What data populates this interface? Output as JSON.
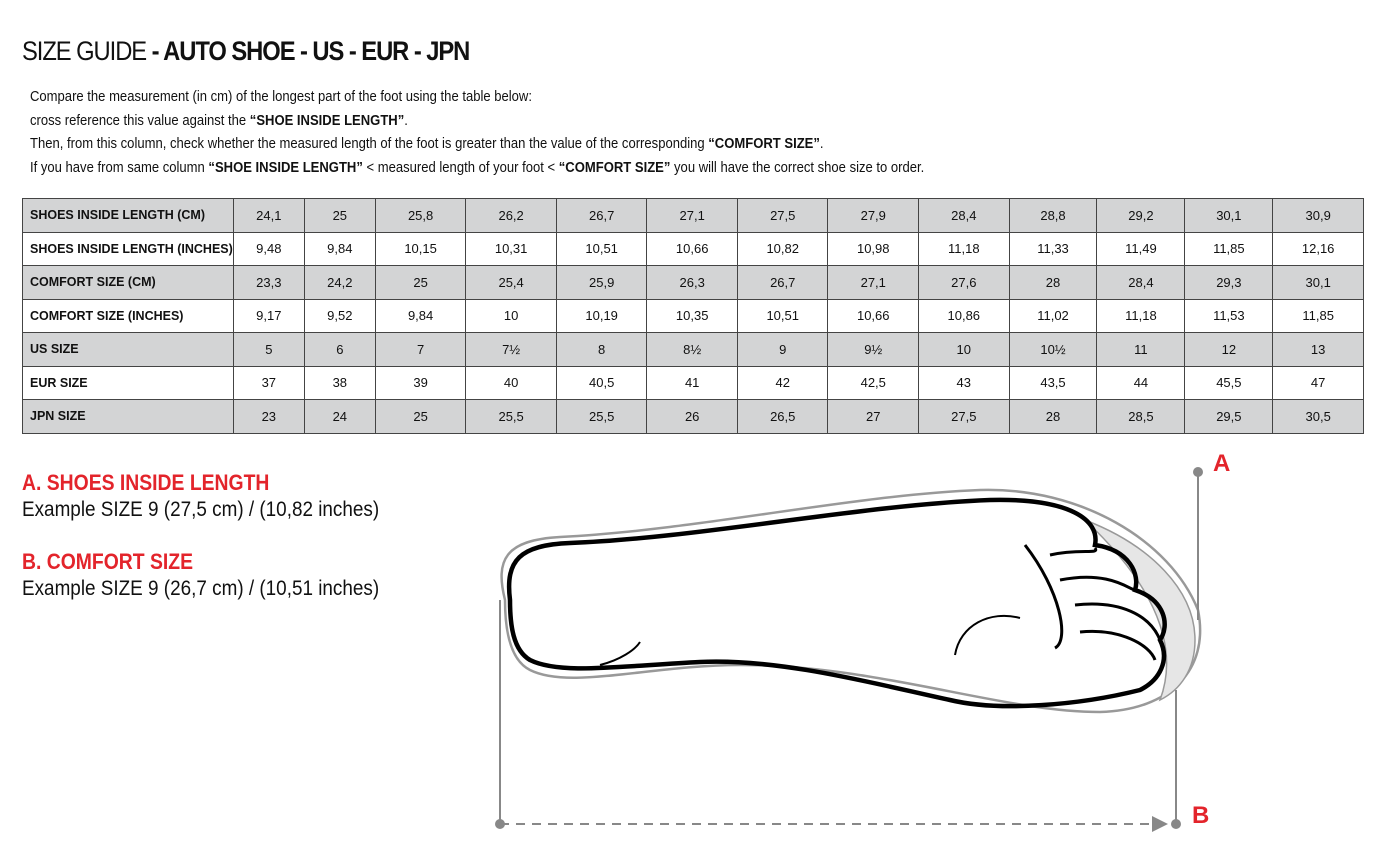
{
  "title": {
    "light": "SIZE GUIDE",
    "bold": " - AUTO SHOE - US - EUR - JPN"
  },
  "intro": {
    "line1": "Compare the measurement (in cm) of the longest part of the foot using the table below:",
    "line2_a": "cross reference this value against the ",
    "line2_b": "“SHOE INSIDE LENGTH”",
    "line2_c": ".",
    "line3_a": "Then, from this column, check whether the measured length of the foot is greater than the value of the corresponding ",
    "line3_b": "“COMFORT SIZE”",
    "line3_c": ".",
    "line4_a": "If you have from same column ",
    "line4_b": "“SHOE INSIDE LENGTH”",
    "line4_c": " <  measured length of your foot  < ",
    "line4_d": "“COMFORT SIZE”",
    "line4_e": " you will have the correct shoe size to order."
  },
  "table": {
    "rows": [
      {
        "label": "SHOES INSIDE LENGTH (CM)",
        "values": [
          "24,1",
          "25",
          "25,8",
          "26,2",
          "26,7",
          "27,1",
          "27,5",
          "27,9",
          "28,4",
          "28,8",
          "29,2",
          "30,1",
          "30,9"
        ]
      },
      {
        "label": "SHOES INSIDE LENGTH (INCHES)",
        "values": [
          "9,48",
          "9,84",
          "10,15",
          "10,31",
          "10,51",
          "10,66",
          "10,82",
          "10,98",
          "11,18",
          "11,33",
          "11,49",
          "11,85",
          "12,16"
        ]
      },
      {
        "label": "COMFORT SIZE (CM)",
        "values": [
          "23,3",
          "24,2",
          "25",
          "25,4",
          "25,9",
          "26,3",
          "26,7",
          "27,1",
          "27,6",
          "28",
          "28,4",
          "29,3",
          "30,1"
        ]
      },
      {
        "label": "COMFORT SIZE (INCHES)",
        "values": [
          "9,17",
          "9,52",
          "9,84",
          "10",
          "10,19",
          "10,35",
          "10,51",
          "10,66",
          "10,86",
          "11,02",
          "11,18",
          "11,53",
          "11,85"
        ]
      },
      {
        "label": "US SIZE",
        "values": [
          "5",
          "6",
          "7",
          "7½",
          "8",
          "8½",
          "9",
          "9½",
          "10",
          "10½",
          "11",
          "12",
          "13"
        ]
      },
      {
        "label": "EUR SIZE",
        "values": [
          "37",
          "38",
          "39",
          "40",
          "40,5",
          "41",
          "42",
          "42,5",
          "43",
          "43,5",
          "44",
          "45,5",
          "47"
        ]
      },
      {
        "label": "JPN SIZE",
        "values": [
          "23",
          "24",
          "25",
          "25,5",
          "25,5",
          "26",
          "26,5",
          "27",
          "27,5",
          "28",
          "28,5",
          "29,5",
          "30,5"
        ]
      }
    ]
  },
  "legend": {
    "a_title": "A. SHOES INSIDE LENGTH",
    "a_example": "Example SIZE 9 (27,5 cm) / (10,82 inches)",
    "b_title": "B. COMFORT SIZE",
    "b_example": "Example SIZE 9 (26,7 cm) / (10,51 inches)"
  },
  "markers": {
    "a": "A",
    "b": "B"
  },
  "colors": {
    "accent": "#e3242b",
    "row_shade": "#d3d4d5"
  }
}
